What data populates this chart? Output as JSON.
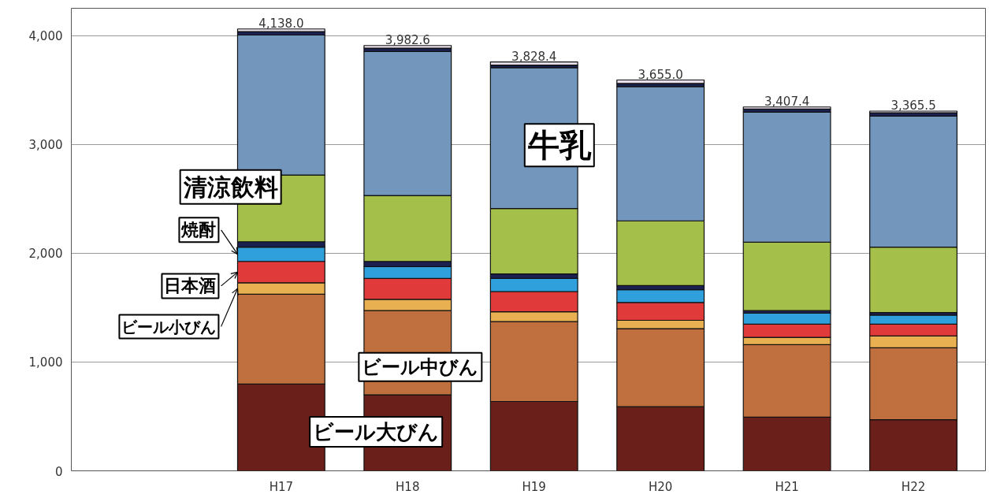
{
  "chart_data": {
    "type": "bar",
    "stacked": true,
    "categories": [
      null,
      "H17",
      "H18",
      "H19",
      "H20",
      "H21",
      "H22"
    ],
    "series": [
      {
        "name": "ビール大びん",
        "color": "#6b1f1a",
        "values": [
          null,
          798,
          698,
          637,
          589,
          493,
          469
        ]
      },
      {
        "name": "ビール中びん",
        "color": "#c0703f",
        "values": [
          null,
          825,
          774,
          734,
          717,
          666,
          662
        ]
      },
      {
        "name": "ビール小びん",
        "color": "#e8b050",
        "values": [
          null,
          104,
          103,
          91,
          77,
          68,
          108
        ]
      },
      {
        "name": "日本酒",
        "color": "#e03a3a",
        "values": [
          null,
          197,
          193,
          185,
          163,
          120,
          108
        ]
      },
      {
        "name": "焼酎",
        "color": "#30a0dc",
        "values": [
          null,
          132,
          108,
          121,
          119,
          101,
          84
        ]
      },
      {
        "color": "#1a2050",
        "values": [
          null,
          49,
          48,
          41,
          38,
          24,
          24
        ]
      },
      {
        "name": "清涼飲料",
        "color": "#a5c04a",
        "values": [
          null,
          613,
          606,
          601,
          594,
          628,
          601
        ]
      },
      {
        "name": "牛乳",
        "color": "#7396bd",
        "values": [
          null,
          1286,
          1323,
          1294,
          1233,
          1195,
          1203
        ]
      },
      {
        "color": "#1a2050",
        "values": [
          null,
          32,
          31,
          24,
          29,
          29,
          31
        ]
      },
      {
        "color": "#e8e0ec",
        "values": [
          null,
          24,
          24,
          29,
          32,
          19,
          15
        ]
      }
    ],
    "annotations": [
      {
        "text": "4,138.0",
        "x": "H17",
        "y": 4060
      },
      {
        "text": "3,982.6",
        "x": "H18",
        "y": 3908
      },
      {
        "text": "3,828.4",
        "x": "H19",
        "y": 3757
      },
      {
        "text": "3,655.0",
        "x": "H20",
        "y": 3591
      },
      {
        "text": "3,407.4",
        "x": "H21",
        "y": 3343
      },
      {
        "text": "3,365.5",
        "x": "H22",
        "y": 3305
      }
    ],
    "ylim": [
      0,
      4250
    ],
    "yticks": [
      0,
      {
        "value": 1000,
        "label": "1,000"
      },
      {
        "value": 2000,
        "label": "2,000"
      },
      {
        "value": 3000,
        "label": "3,000"
      },
      {
        "value": 4000,
        "label": "4,000"
      }
    ],
    "grid": "y"
  }
}
